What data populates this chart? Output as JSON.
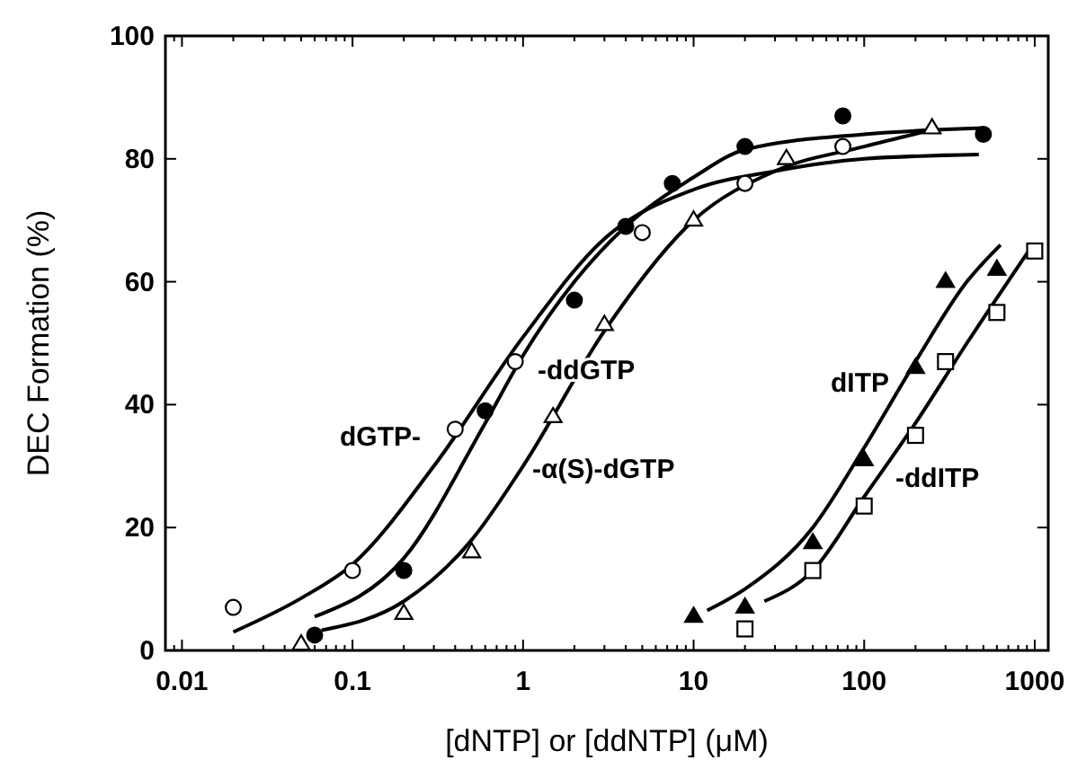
{
  "chart_data": {
    "type": "scatter",
    "xlabel": "[dNTP] or [ddNTP]  (μM)",
    "ylabel": "DEC Formation (%)",
    "log": "x",
    "xlim": [
      0.008,
      1200
    ],
    "ylim": [
      0,
      100
    ],
    "xticks": [
      {
        "value": 0.008,
        "label": null
      },
      {
        "value": 0.009,
        "label": null
      },
      {
        "value": 0.01,
        "label": "0.01"
      },
      {
        "value": 0.02,
        "label": null
      },
      {
        "value": 0.03,
        "label": null
      },
      {
        "value": 0.04,
        "label": null
      },
      {
        "value": 0.05,
        "label": null
      },
      {
        "value": 0.06,
        "label": null
      },
      {
        "value": 0.07,
        "label": null
      },
      {
        "value": 0.08,
        "label": null
      },
      {
        "value": 0.09,
        "label": null
      },
      {
        "value": 0.1,
        "label": "0.1"
      },
      {
        "value": 0.2,
        "label": null
      },
      {
        "value": 0.3,
        "label": null
      },
      {
        "value": 0.4,
        "label": null
      },
      {
        "value": 0.5,
        "label": null
      },
      {
        "value": 0.6,
        "label": null
      },
      {
        "value": 0.7,
        "label": null
      },
      {
        "value": 0.8,
        "label": null
      },
      {
        "value": 0.9,
        "label": null
      },
      1,
      {
        "value": 2,
        "label": null
      },
      {
        "value": 3,
        "label": null
      },
      {
        "value": 4,
        "label": null
      },
      {
        "value": 5,
        "label": null
      },
      {
        "value": 6,
        "label": null
      },
      {
        "value": 7,
        "label": null
      },
      {
        "value": 8,
        "label": null
      },
      {
        "value": 9,
        "label": null
      },
      10,
      {
        "value": 20,
        "label": null
      },
      {
        "value": 30,
        "label": null
      },
      {
        "value": 40,
        "label": null
      },
      {
        "value": 50,
        "label": null
      },
      {
        "value": 60,
        "label": null
      },
      {
        "value": 70,
        "label": null
      },
      {
        "value": 80,
        "label": null
      },
      {
        "value": 90,
        "label": null
      },
      100,
      {
        "value": 200,
        "label": null
      },
      {
        "value": 300,
        "label": null
      },
      {
        "value": 400,
        "label": null
      },
      {
        "value": 500,
        "label": null
      },
      {
        "value": 600,
        "label": null
      },
      {
        "value": 700,
        "label": null
      },
      {
        "value": 800,
        "label": null
      },
      {
        "value": 900,
        "label": null
      },
      1000
    ],
    "yticks": [
      0,
      20,
      40,
      60,
      80,
      100
    ],
    "grid": false,
    "series": [
      {
        "marker": "circle",
        "color": "#ffffff",
        "x": [
          0.02,
          0.1,
          0.4,
          0.9,
          5,
          20,
          75
        ],
        "values": [
          7,
          13,
          36,
          47,
          68,
          76,
          82
        ]
      },
      {
        "marker": "circle",
        "color": "#000000",
        "x": [
          0.06,
          0.2,
          0.6,
          2,
          4,
          7.5,
          20,
          75,
          500
        ],
        "values": [
          2.5,
          13,
          39,
          57,
          69,
          76,
          82,
          87,
          84
        ]
      },
      {
        "marker": "triangle",
        "color": "#ffffff",
        "x": [
          0.05,
          0.2,
          0.5,
          1.5,
          3,
          10,
          35,
          250
        ],
        "values": [
          1,
          6,
          16,
          38,
          53,
          70,
          80,
          85
        ]
      },
      {
        "marker": "triangle",
        "color": "#000000",
        "x": [
          10,
          20,
          50,
          100,
          200,
          300,
          600
        ],
        "values": [
          5.5,
          7,
          17.5,
          31,
          46,
          60,
          62
        ]
      },
      {
        "marker": "square",
        "color": "#ffffff",
        "x": [
          20,
          50,
          100,
          200,
          300,
          600,
          1000
        ],
        "values": [
          3.5,
          13,
          23.5,
          35,
          47,
          55,
          65
        ]
      },
      {
        "type": "line",
        "marker": "none",
        "color": "#000000",
        "x": [
          0.02,
          0.05,
          0.1,
          0.3,
          1,
          3,
          10,
          30,
          100,
          470
        ],
        "values": [
          3,
          8.5,
          14,
          30,
          51,
          67,
          75,
          78,
          80,
          80.7
        ]
      },
      {
        "type": "line",
        "marker": "none",
        "color": "#000000",
        "x": [
          0.06,
          0.2,
          0.6,
          1,
          2,
          4,
          10,
          20,
          100,
          500
        ],
        "values": [
          5.5,
          15,
          37,
          48,
          60,
          69,
          77,
          81.5,
          84,
          85
        ]
      },
      {
        "type": "line",
        "marker": "none",
        "color": "#000000",
        "x": [
          0.066,
          0.2,
          0.5,
          1,
          3,
          10,
          30,
          100,
          250
        ],
        "values": [
          3.3,
          8,
          18,
          30,
          52,
          70,
          78,
          82,
          84.7
        ]
      },
      {
        "type": "line",
        "marker": "none",
        "color": "#000000",
        "x": [
          12,
          20,
          50,
          100,
          200,
          400,
          630
        ],
        "values": [
          6.5,
          10,
          20,
          33,
          47,
          60,
          66
        ]
      },
      {
        "type": "line",
        "marker": "none",
        "color": "#000000",
        "x": [
          26,
          50,
          100,
          200,
          400,
          910
        ],
        "values": [
          8,
          13,
          25,
          37,
          50,
          64.8
        ]
      }
    ],
    "annotations": [
      "-ddGTP",
      "dGTP-",
      "-α(S)-dGTP",
      "dITP",
      "-ddITP"
    ]
  }
}
